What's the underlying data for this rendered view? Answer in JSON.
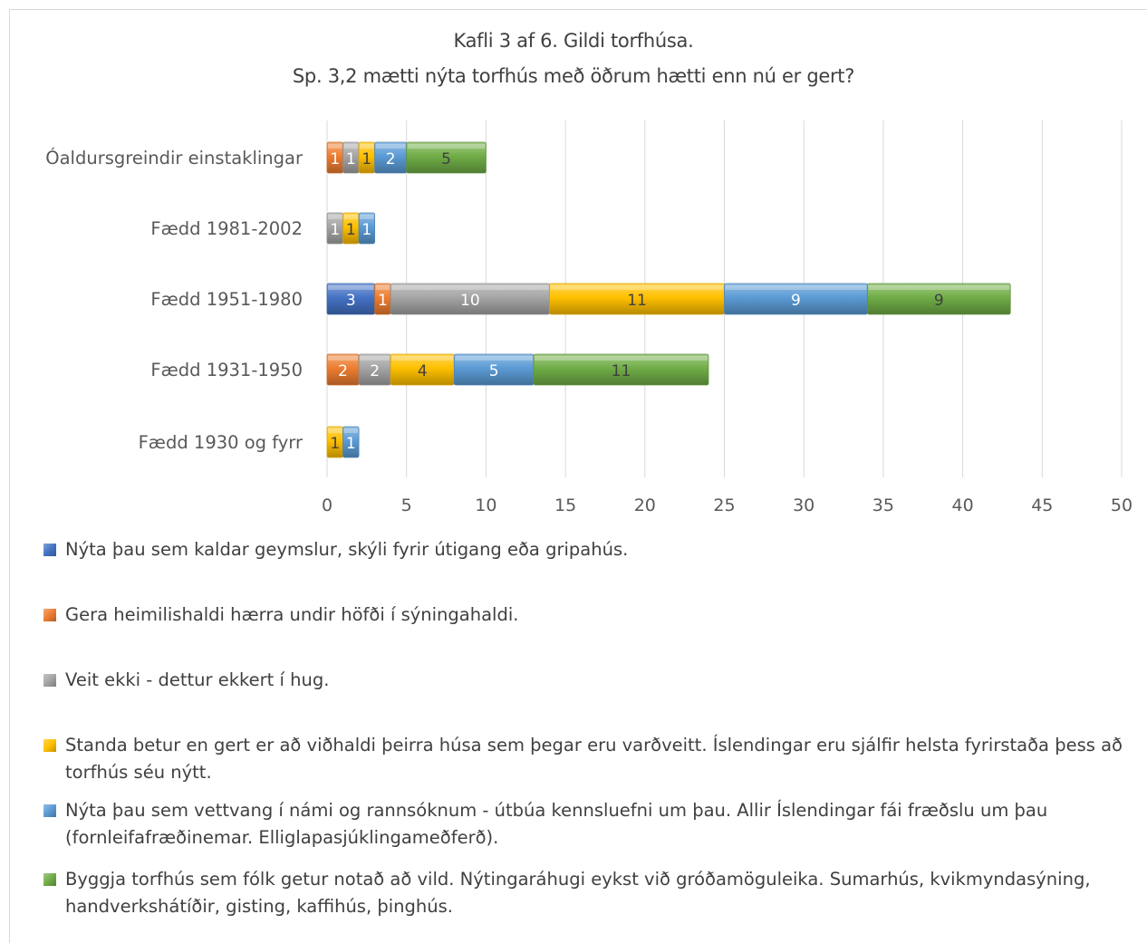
{
  "chart_data": {
    "type": "bar",
    "orientation": "horizontal",
    "stacked": true,
    "title": "Kafli 3 af 6. Gildi torfhúsa.",
    "subtitle": "Sp. 3,2 mætti nýta torfhús með öðrum hætti enn nú er gert?",
    "categories": [
      "Óaldursgreindir einstaklingar",
      "Fædd 1981-2002",
      "Fædd 1951-1980",
      "Fædd 1931-1950",
      "Fædd 1930 og fyrr"
    ],
    "series": [
      {
        "name": "Nýta þau sem kaldar geymslur, skýli fyrir útigang eða gripahús.",
        "color": "#4472c4",
        "values": [
          0,
          0,
          3,
          0,
          0
        ]
      },
      {
        "name": "Gera heimilishaldi hærra undir höfði í sýningahaldi.",
        "color": "#ed7d31",
        "values": [
          1,
          0,
          1,
          2,
          0
        ]
      },
      {
        "name": "Veit ekki - dettur ekkert í hug.",
        "color": "#a5a5a5",
        "values": [
          1,
          1,
          10,
          2,
          0
        ]
      },
      {
        "name": "Standa betur  en gert er að viðhaldi þeirra húsa sem þegar eru varðveitt. Íslendingar eru sjálfir helsta fyrirstaða þess að torfhús séu nýtt.",
        "color": "#ffc000",
        "values": [
          1,
          1,
          11,
          4,
          1
        ]
      },
      {
        "name": "Nýta þau sem vettvang í námi og rannsóknum - útbúa kennsluefni um þau. Allir Íslendingar fái fræðslu um þau (fornleifafræðinemar. Elliglapasjúklingameðferð).",
        "color": "#5b9bd5",
        "values": [
          2,
          1,
          9,
          5,
          1
        ]
      },
      {
        "name": "Byggja torfhús sem fólk getur notað að vild. Nýtingaráhugi eykst við gróðamöguleika. Sumarhús, kvikmyndasýning, handverkshátíðir, gisting, kaffihús, þinghús.",
        "color": "#70ad47",
        "values": [
          5,
          0,
          9,
          11,
          0
        ]
      }
    ],
    "xlim": [
      0,
      50
    ],
    "xticks": [
      0,
      5,
      10,
      15,
      20,
      25,
      30,
      35,
      40,
      45,
      50
    ],
    "grid": true,
    "legend_position": "bottom",
    "data_labels": true
  }
}
